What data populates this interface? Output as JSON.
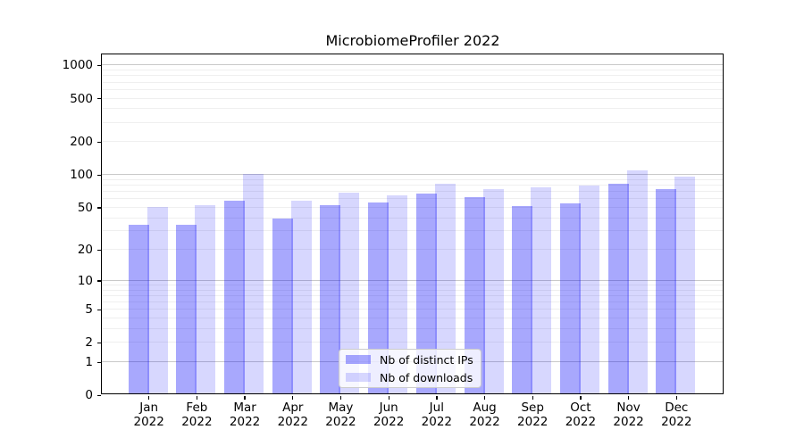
{
  "chart_data": {
    "type": "bar",
    "title": "MicrobiomeProfiler 2022",
    "categories": [
      "Jan",
      "Feb",
      "Mar",
      "Apr",
      "May",
      "Jun",
      "Jul",
      "Aug",
      "Sep",
      "Oct",
      "Nov",
      "Dec"
    ],
    "category_year": "2022",
    "series": [
      {
        "name": "Nb of distinct IPs",
        "fill": "rgba(0,0,248,0.34)",
        "hex_on_white": "#a8a8fd",
        "values": [
          34,
          34,
          58,
          39,
          52,
          55,
          67,
          62,
          51,
          54,
          83,
          73
        ]
      },
      {
        "name": "Nb of downloads",
        "fill": "rgba(0,0,248,0.155)",
        "hex_on_white": "#d8d8fe",
        "values": [
          50,
          52,
          101,
          57,
          68,
          64,
          83,
          73,
          77,
          79,
          109,
          96
        ]
      }
    ],
    "y_ticks": [
      0,
      1,
      2,
      5,
      10,
      20,
      50,
      100,
      200,
      500,
      1000
    ],
    "y_tick_labels": [
      "0",
      "1",
      "2",
      "5",
      "10",
      "20",
      "50",
      "100",
      "200",
      "500",
      "1000"
    ],
    "y_scale": "log10(value+1)",
    "ylim": [
      0,
      1000
    ],
    "grid": "horizontal",
    "grid_minor_values": [
      2,
      3,
      4,
      5,
      6,
      7,
      8,
      9,
      20,
      30,
      40,
      50,
      60,
      70,
      80,
      90,
      200,
      300,
      400,
      500,
      600,
      700,
      800,
      900
    ],
    "grid_major_values": [
      1,
      10,
      100,
      1000
    ],
    "legend_position": "inside-bottom-center",
    "colors": {
      "major_grid": "#c9c9c9",
      "minor_grid": "#efefef",
      "spine": "#000000",
      "text": "#000000"
    }
  }
}
